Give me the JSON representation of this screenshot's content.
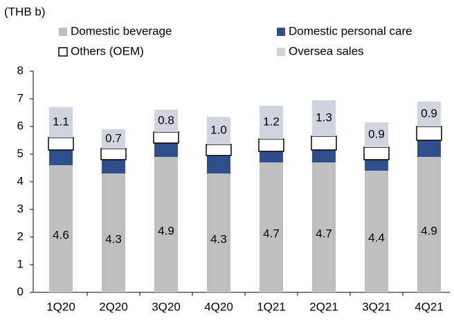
{
  "chart_data": {
    "type": "stacked_bar",
    "y_axis_label": "(THB b)",
    "categories": [
      "1Q20",
      "2Q20",
      "3Q20",
      "4Q20",
      "1Q21",
      "2Q21",
      "3Q21",
      "4Q21"
    ],
    "series": [
      {
        "name": "Domestic beverage",
        "color": "#bfbfbf",
        "values": [
          4.6,
          4.3,
          4.9,
          4.3,
          4.7,
          4.7,
          4.4,
          4.9
        ],
        "value_labels": [
          "4.6",
          "4.3",
          "4.9",
          "4.3",
          "4.7",
          "4.7",
          "4.4",
          "4.9"
        ]
      },
      {
        "name": "Domestic personal care",
        "color": "#2f4f8f",
        "values": [
          0.55,
          0.5,
          0.5,
          0.65,
          0.4,
          0.45,
          0.4,
          0.6
        ]
      },
      {
        "name": "Others (OEM)",
        "color": "#ffffff",
        "values": [
          0.45,
          0.4,
          0.4,
          0.4,
          0.45,
          0.5,
          0.45,
          0.5
        ]
      },
      {
        "name": "Oversea sales",
        "color": "#d0d4e0",
        "values": [
          1.1,
          0.7,
          0.8,
          1.0,
          1.2,
          1.3,
          0.9,
          0.9
        ],
        "value_labels": [
          "1.1",
          "0.7",
          "0.8",
          "1.0",
          "1.2",
          "1.3",
          "0.9",
          "0.9"
        ]
      }
    ],
    "ylim": [
      0,
      8
    ],
    "yticks": [
      0,
      1,
      2,
      3,
      4,
      5,
      6,
      7,
      8
    ],
    "grid": false
  }
}
